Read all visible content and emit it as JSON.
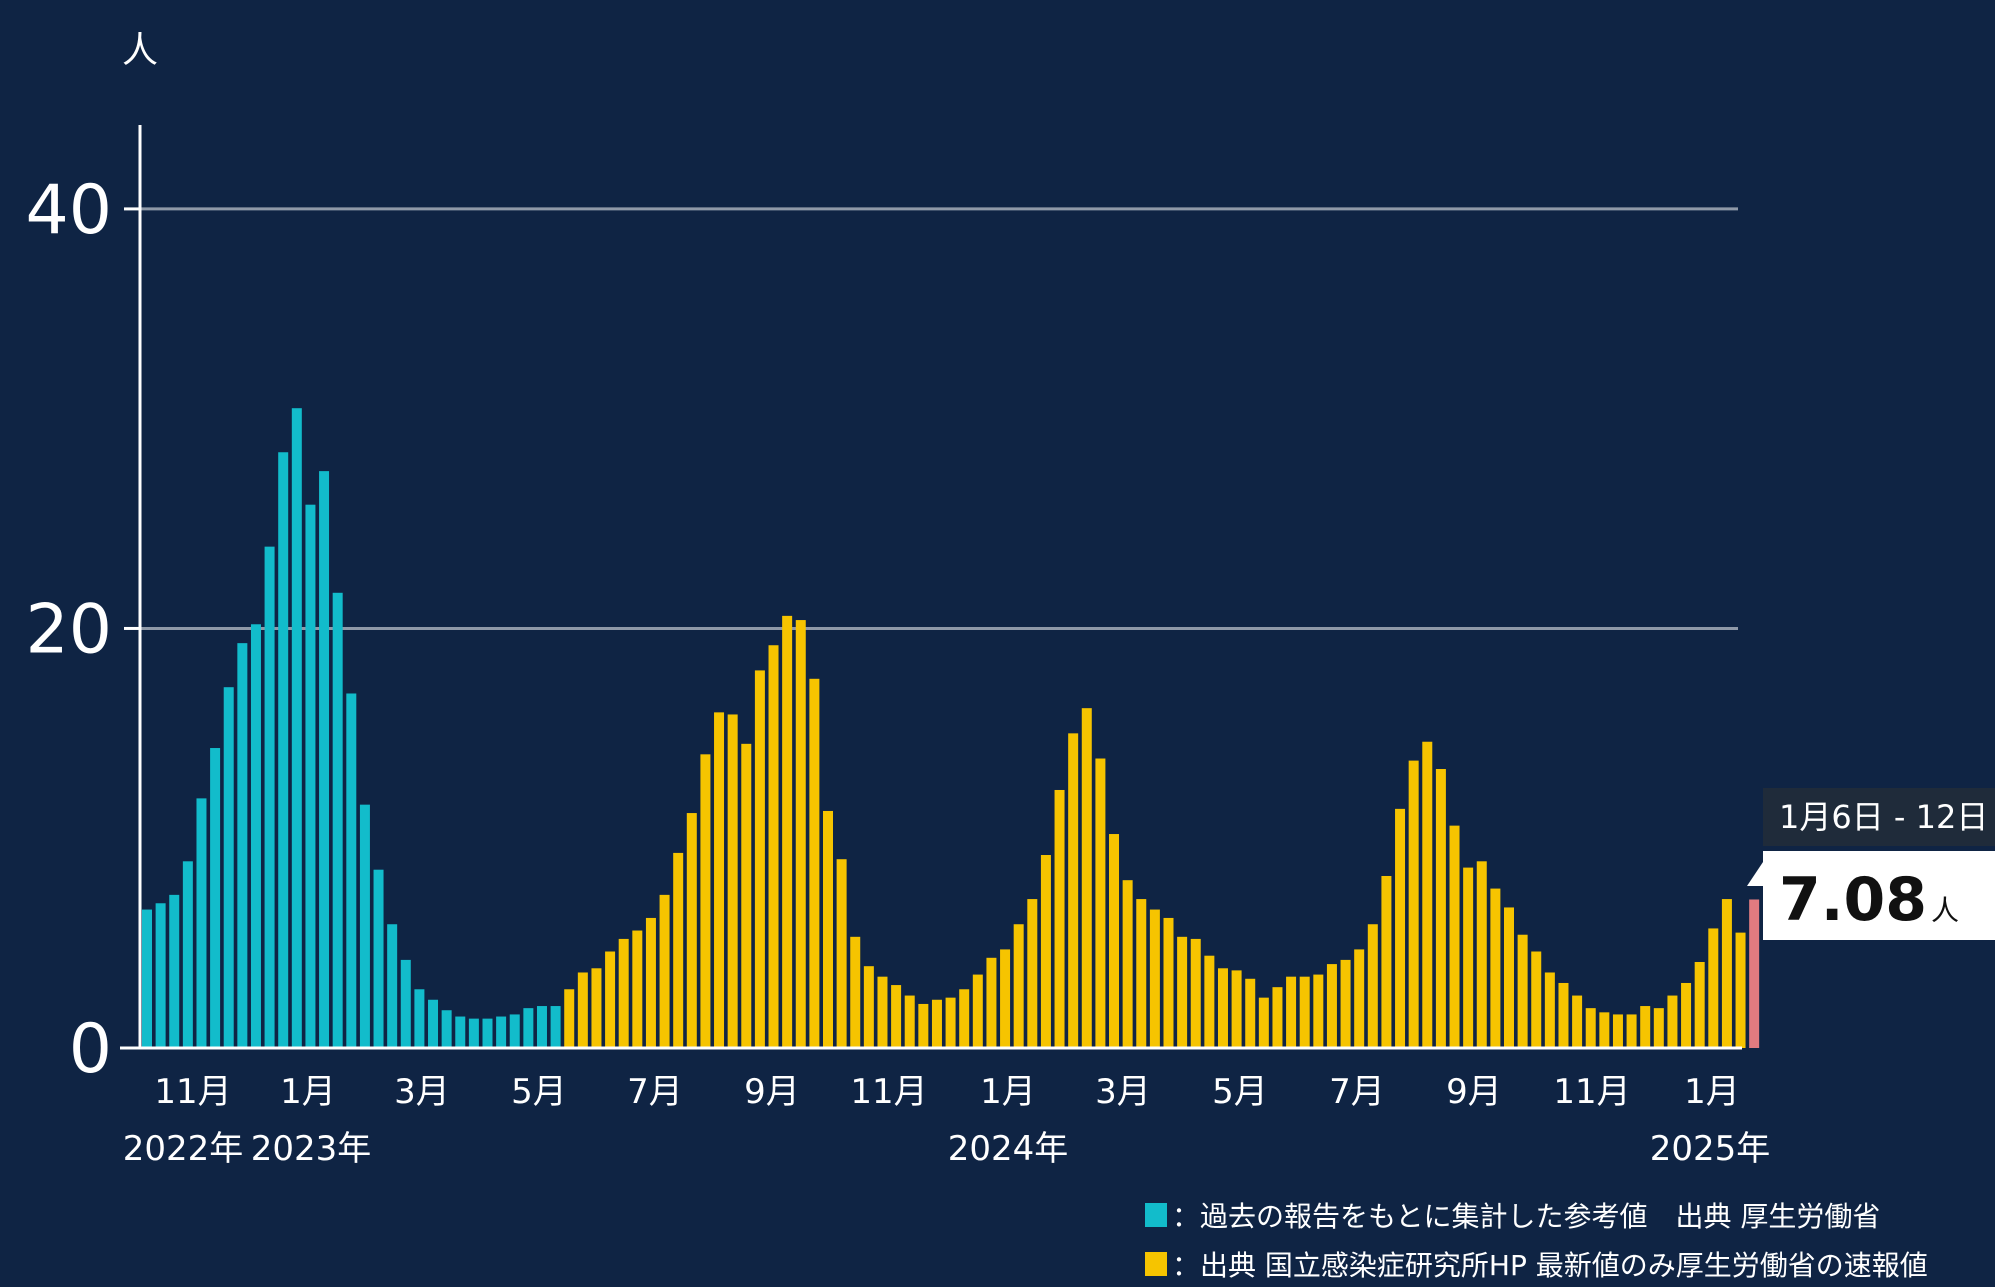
{
  "chart_data": {
    "type": "bar",
    "y_unit": "人",
    "ylim": [
      0,
      44
    ],
    "y_ticks": [
      0,
      20,
      40
    ],
    "grid": true,
    "x_ticks": [
      "11月",
      "1月",
      "3月",
      "5月",
      "7月",
      "9月",
      "11月",
      "1月",
      "3月",
      "5月",
      "7月",
      "9月",
      "11月",
      "1月"
    ],
    "year_labels": [
      "2022年",
      "2023年",
      "2024年",
      "2025年"
    ],
    "series": [
      {
        "color": "#12bccb",
        "values": [
          6.6,
          6.9,
          7.3,
          8.9,
          11.9,
          14.3,
          17.2,
          19.3,
          20.2,
          23.9,
          28.4,
          30.5,
          25.9,
          27.5,
          21.7,
          16.9,
          11.6,
          8.5,
          5.9,
          4.2,
          2.8,
          2.3,
          1.8,
          1.5,
          1.4,
          1.4,
          1.5,
          1.6,
          1.9,
          2.0,
          2.0
        ]
      },
      {
        "color": "#f6c400",
        "values": [
          2.8,
          3.6,
          3.8,
          4.6,
          5.2,
          5.6,
          6.2,
          7.3,
          9.3,
          11.2,
          14.0,
          16.0,
          15.9,
          14.5,
          18.0,
          19.2,
          20.6,
          20.4,
          17.6,
          11.3,
          9.0,
          5.3,
          3.9,
          3.4,
          3.0,
          2.5,
          2.1,
          2.3,
          2.4,
          2.8,
          3.5,
          4.3,
          4.7,
          5.9,
          7.1,
          9.2,
          12.3,
          15.0,
          16.2,
          13.8,
          10.2,
          8.0,
          7.1,
          6.6,
          6.2,
          5.3,
          5.2,
          4.4,
          3.8,
          3.7,
          3.3,
          2.4,
          2.9,
          3.4,
          3.4,
          3.5,
          4.0,
          4.2,
          4.7,
          5.9,
          8.2,
          11.4,
          13.7,
          14.6,
          13.3,
          10.6,
          8.6,
          8.9,
          7.6,
          6.7,
          5.4,
          4.6,
          3.6,
          3.1,
          2.5,
          1.9,
          1.7,
          1.6,
          1.6,
          2.0,
          1.9,
          2.5,
          3.1,
          4.1,
          5.7,
          7.1,
          5.5
        ]
      },
      {
        "color": "#e17b80",
        "values": [
          7.08
        ]
      }
    ],
    "callout": {
      "date": "1月6日 - 12日",
      "value": "7.08",
      "unit": "人"
    },
    "legend": [
      {
        "color": "#12bccb",
        "label": "：過去の報告をもとに集計した参考値　出典 厚生労働省"
      },
      {
        "color": "#f6c400",
        "label": "：出典 国立感染症研究所HP 最新値のみ厚生労働省の速報値"
      }
    ]
  }
}
